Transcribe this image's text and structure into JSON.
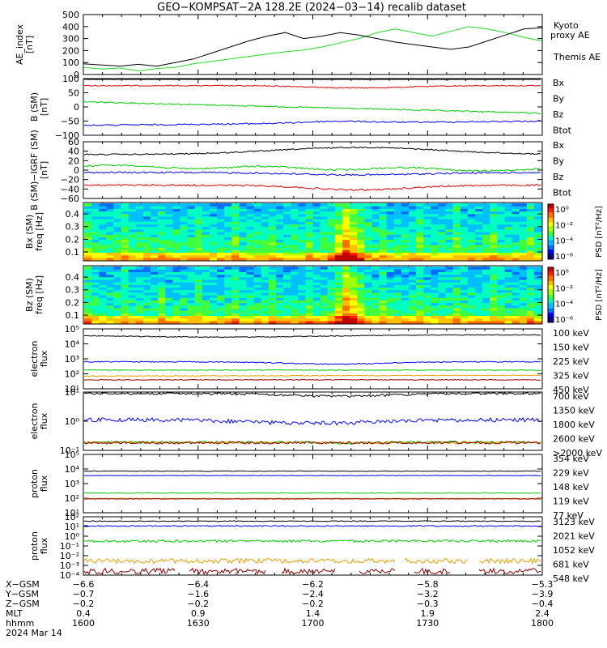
{
  "title": "GEO−KOMPSAT−2A 128.2E (2024−03−14) recalib dataset",
  "chart_data": [
    {
      "id": "ae",
      "type": "line",
      "ylabel": "AE_index [nT]",
      "ylim": [
        0,
        500
      ],
      "yticks": [
        "0",
        "100",
        "200",
        "300",
        "400",
        "500"
      ],
      "series": [
        {
          "name": "Kyoto proxy AE",
          "color": "#22dd22",
          "points": [
            [
              0,
              60
            ],
            [
              10,
              45
            ],
            [
              20,
              55
            ],
            [
              30,
              30
            ],
            [
              40,
              50
            ],
            [
              50,
              60
            ],
            [
              60,
              90
            ],
            [
              70,
              110
            ],
            [
              80,
              130
            ],
            [
              90,
              150
            ],
            [
              100,
              170
            ],
            [
              110,
              190
            ],
            [
              120,
              205
            ],
            [
              130,
              230
            ],
            [
              140,
              265
            ],
            [
              150,
              300
            ],
            [
              160,
              350
            ],
            [
              170,
              380
            ],
            [
              180,
              350
            ],
            [
              190,
              320
            ],
            [
              200,
              360
            ],
            [
              210,
              400
            ],
            [
              220,
              380
            ],
            [
              230,
              350
            ],
            [
              240,
              310
            ],
            [
              250,
              280
            ]
          ]
        },
        {
          "name": "Themis AE",
          "color": "#000000",
          "points": [
            [
              0,
              90
            ],
            [
              10,
              80
            ],
            [
              20,
              70
            ],
            [
              30,
              85
            ],
            [
              40,
              70
            ],
            [
              50,
              100
            ],
            [
              60,
              130
            ],
            [
              70,
              180
            ],
            [
              80,
              230
            ],
            [
              90,
              280
            ],
            [
              100,
              320
            ],
            [
              110,
              350
            ],
            [
              120,
              300
            ],
            [
              130,
              320
            ],
            [
              140,
              350
            ],
            [
              150,
              330
            ],
            [
              160,
              300
            ],
            [
              170,
              270
            ],
            [
              180,
              250
            ],
            [
              190,
              230
            ],
            [
              200,
              210
            ],
            [
              210,
              230
            ],
            [
              220,
              280
            ],
            [
              230,
              330
            ],
            [
              240,
              380
            ],
            [
              250,
              390
            ]
          ]
        }
      ]
    },
    {
      "id": "bsm",
      "type": "line",
      "ylabel": "B (SM) [nT]",
      "ylim": [
        -100,
        100
      ],
      "yticks": [
        "−100",
        "−50",
        "0",
        "50",
        "100"
      ],
      "series": [
        {
          "name": "Bx",
          "color": "#0000ff",
          "label_color": "#0000ff"
        },
        {
          "name": "By",
          "color": "#00cc00",
          "label_color": "#00cc00"
        },
        {
          "name": "Bz",
          "color": "#dd0000",
          "label_color": "#dd0000"
        },
        {
          "name": "Btot",
          "color": "#000000",
          "label_color": "#000000"
        }
      ]
    },
    {
      "id": "bsm_igrf",
      "type": "line",
      "ylabel": "B (SM)−IGRF (SM) [nT]",
      "ylim": [
        -60,
        60
      ],
      "yticks": [
        "−60",
        "−40",
        "−20",
        "0",
        "20",
        "40",
        "60"
      ],
      "series": [
        {
          "name": "Bx",
          "color": "#0000ff"
        },
        {
          "name": "By",
          "color": "#00cc00"
        },
        {
          "name": "Bz",
          "color": "#dd0000"
        },
        {
          "name": "Btot",
          "color": "#000000"
        }
      ]
    },
    {
      "id": "bx_spec",
      "type": "heatmap",
      "ylabel": "Bx (SM) freq [Hz]",
      "yticks": [
        "0.1",
        "0.2",
        "0.3",
        "0.4"
      ],
      "colorbar_label": "PSD [nT²/Hz]",
      "colorbar_ticks": [
        "10⁰",
        "10⁻²",
        "10⁻⁴",
        "10⁻⁶"
      ]
    },
    {
      "id": "bz_spec",
      "type": "heatmap",
      "ylabel": "Bz (SM) freq [Hz]",
      "yticks": [
        "0.1",
        "0.2",
        "0.3",
        "0.4"
      ],
      "colorbar_label": "PSD [nT²/Hz]",
      "colorbar_ticks": [
        "10⁰",
        "10⁻²",
        "10⁻⁴",
        "10⁻⁶"
      ]
    },
    {
      "id": "eflux1",
      "type": "line",
      "ylabel": "electron flux",
      "yticks": [
        "10⁵",
        "10⁴",
        "10³",
        "10²",
        "10¹"
      ],
      "series": [
        {
          "name": "100 keV",
          "color": "#000000"
        },
        {
          "name": "150 keV",
          "color": "#0000ff"
        },
        {
          "name": "225 keV",
          "color": "#00cc00"
        },
        {
          "name": "325 keV",
          "color": "#e6a000"
        },
        {
          "name": "450 keV",
          "color": "#8b0000"
        }
      ]
    },
    {
      "id": "eflux2",
      "type": "line",
      "ylabel": "electron flux",
      "yticks": [
        "10¹",
        "10⁰",
        "10⁻¹"
      ],
      "series": [
        {
          "name": "700 keV",
          "color": "#000000"
        },
        {
          "name": "1350 keV",
          "color": "#0000ff"
        },
        {
          "name": "1800 keV",
          "color": "#00cc00"
        },
        {
          "name": "2600 keV",
          "color": "#e6a000"
        },
        {
          "name": ">2000 keV",
          "color": "#8b0000"
        }
      ]
    },
    {
      "id": "pflux1",
      "type": "line",
      "ylabel": "proton flux",
      "yticks": [
        "10⁵",
        "10⁴",
        "10³",
        "10²",
        "10¹"
      ],
      "series": [
        {
          "name": "354 keV",
          "color": "#8b0000"
        },
        {
          "name": "229 keV",
          "color": "#e6a000"
        },
        {
          "name": "148 keV",
          "color": "#00cc00"
        },
        {
          "name": "119 keV",
          "color": "#0000ff"
        },
        {
          "name": "77 keV",
          "color": "#000000"
        }
      ]
    },
    {
      "id": "pflux2",
      "type": "line",
      "ylabel": "proton flux",
      "yticks": [
        "10²",
        "10¹",
        "10⁰",
        "10⁻¹",
        "10⁻²",
        "10⁻³",
        "10⁻⁴"
      ],
      "series": [
        {
          "name": "3123 keV",
          "color": "#8b0000"
        },
        {
          "name": "2021 keV",
          "color": "#e6a000"
        },
        {
          "name": "1052 keV",
          "color": "#00cc00"
        },
        {
          "name": "681 keV",
          "color": "#0000ff"
        },
        {
          "name": "548 keV",
          "color": "#000000"
        }
      ]
    }
  ],
  "x_axis": {
    "row_labels": [
      "X−GSM",
      "Y−GSM",
      "Z−GSM",
      "MLT",
      "hhmm",
      "2024 Mar 14"
    ],
    "ticks": [
      [
        "−6.6",
        "−0.7",
        "−0.2",
        "0.4",
        "1600"
      ],
      [
        "−6.4",
        "−1.6",
        "−0.2",
        "0.9",
        "1630"
      ],
      [
        "−6.2",
        "−2.4",
        "−0.2",
        "1.4",
        "1700"
      ],
      [
        "−5.8",
        "−3.2",
        "−0.3",
        "1.9",
        "1730"
      ],
      [
        "−5.3",
        "−3.9",
        "−0.4",
        "2.4",
        "1800"
      ]
    ]
  }
}
